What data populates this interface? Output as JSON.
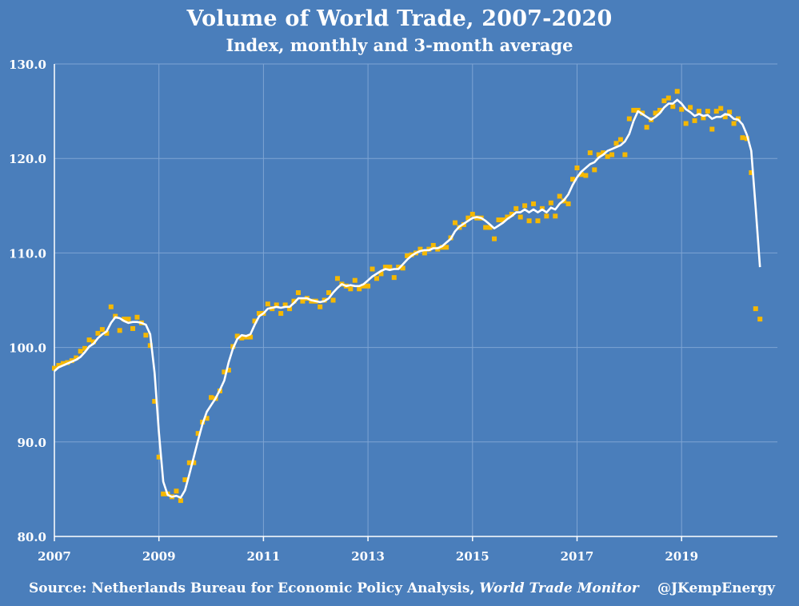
{
  "chart_data": {
    "type": "line",
    "title": "Volume of World Trade, 2007-2020",
    "subtitle": "Index, monthly and 3-month average",
    "xlabel": "",
    "ylabel": "",
    "xlim": [
      2007,
      2020.8333
    ],
    "ylim": [
      80,
      130
    ],
    "x_ticks": [
      "2007",
      "2009",
      "2011",
      "2013",
      "2015",
      "2017",
      "2019"
    ],
    "y_ticks": [
      "80.0",
      "90.0",
      "100.0",
      "110.0",
      "120.0",
      "130.0"
    ],
    "grid": true,
    "colors": {
      "background": "#4a7ebb",
      "monthly": "#f5b800",
      "average": "#ffffff",
      "grid": "#7ea4d3"
    },
    "series": [
      {
        "kind": "monthly",
        "start": "2007-01",
        "values": [
          97.8,
          98.1,
          98.3,
          98.4,
          98.6,
          98.9,
          99.6,
          99.9,
          100.8,
          100.6,
          101.5,
          101.9,
          101.5,
          104.3,
          103.3,
          101.8,
          103.0,
          103.0,
          102.0,
          103.2,
          102.6,
          101.3,
          100.2,
          94.3,
          88.4,
          84.5,
          84.5,
          84.2,
          84.8,
          83.8,
          86.0,
          87.8,
          87.8,
          90.9,
          92.1,
          92.5,
          94.7,
          94.6,
          95.4,
          97.4,
          97.6,
          100.1,
          101.2,
          101.0,
          101.1,
          101.1,
          102.8,
          103.6,
          103.6,
          104.6,
          104.1,
          104.5,
          103.6,
          104.5,
          104.1,
          104.9,
          105.8,
          104.9,
          105.2,
          104.9,
          104.9,
          104.3,
          105.0,
          105.8,
          105.0,
          107.3,
          106.7,
          106.5,
          106.2,
          107.1,
          106.2,
          106.5,
          106.5,
          108.3,
          107.3,
          107.8,
          108.5,
          108.5,
          107.4,
          108.5,
          108.4,
          109.7,
          109.8,
          110.0,
          110.4,
          110.0,
          110.4,
          110.8,
          110.4,
          110.6,
          110.6,
          111.6,
          113.2,
          112.7,
          113.0,
          113.7,
          114.1,
          113.7,
          113.7,
          112.7,
          112.7,
          111.5,
          113.5,
          113.5,
          113.8,
          114.1,
          114.7,
          113.8,
          115.0,
          113.4,
          115.2,
          113.4,
          114.7,
          113.9,
          115.3,
          113.9,
          116.0,
          115.5,
          115.2,
          117.8,
          119.0,
          118.3,
          118.2,
          120.6,
          118.8,
          120.4,
          120.6,
          120.2,
          120.4,
          121.6,
          122.0,
          120.4,
          124.2,
          125.1,
          125.1,
          124.8,
          123.3,
          124.1,
          124.8,
          125.1,
          126.1,
          126.4,
          125.5,
          127.1,
          125.2,
          123.7,
          125.4,
          124.0,
          125.0,
          124.3,
          125.0,
          123.1,
          125.0,
          125.3,
          124.4,
          124.9,
          123.7,
          124.2,
          122.2,
          122.1,
          118.5,
          104.1,
          103.0
        ]
      },
      {
        "kind": "3-month average",
        "start": "2007-01",
        "values": [
          97.5,
          97.9,
          98.1,
          98.3,
          98.5,
          98.7,
          99.0,
          99.5,
          100.1,
          100.4,
          101.0,
          101.4,
          101.7,
          102.6,
          103.2,
          103.1,
          102.8,
          102.6,
          102.7,
          102.7,
          102.6,
          102.4,
          101.4,
          97.3,
          91.0,
          85.8,
          84.4,
          84.2,
          84.3,
          84.1,
          84.9,
          86.6,
          88.4,
          90.2,
          91.9,
          93.2,
          93.9,
          94.6,
          95.5,
          96.5,
          98.4,
          99.9,
          100.9,
          101.3,
          101.2,
          101.4,
          102.4,
          103.3,
          103.6,
          104.1,
          104.2,
          104.3,
          104.2,
          104.3,
          104.3,
          104.7,
          105.2,
          105.2,
          105.2,
          105.0,
          104.9,
          104.8,
          104.9,
          105.2,
          105.8,
          106.3,
          106.7,
          106.5,
          106.6,
          106.5,
          106.5,
          106.7,
          107.1,
          107.5,
          107.8,
          108.1,
          108.3,
          108.2,
          108.3,
          108.3,
          108.8,
          109.3,
          109.7,
          110.0,
          110.2,
          110.3,
          110.3,
          110.5,
          110.5,
          110.7,
          111.1,
          111.5,
          112.3,
          112.8,
          113.1,
          113.4,
          113.7,
          113.8,
          113.7,
          113.4,
          113.0,
          112.6,
          112.9,
          113.2,
          113.6,
          113.9,
          114.3,
          114.3,
          114.6,
          114.3,
          114.6,
          114.3,
          114.6,
          114.3,
          114.8,
          114.6,
          115.2,
          115.6,
          116.2,
          117.2,
          118.0,
          118.6,
          119.0,
          119.4,
          119.6,
          120.1,
          120.4,
          120.8,
          121.0,
          121.2,
          121.4,
          121.8,
          122.6,
          124.0,
          125.0,
          124.7,
          124.4,
          124.1,
          124.4,
          124.8,
          125.4,
          125.8,
          125.8,
          126.2,
          125.8,
          125.2,
          124.9,
          124.5,
          124.7,
          124.5,
          124.6,
          124.2,
          124.4,
          124.4,
          124.7,
          124.6,
          124.2,
          124.1,
          123.6,
          122.5,
          120.8,
          114.8,
          108.5
        ]
      }
    ]
  },
  "footer": {
    "source_prefix": "Source:  Netherlands Bureau for Economic Policy Analysis, ",
    "source_italic": "World Trade Monitor",
    "handle": "@JKempEnergy"
  }
}
